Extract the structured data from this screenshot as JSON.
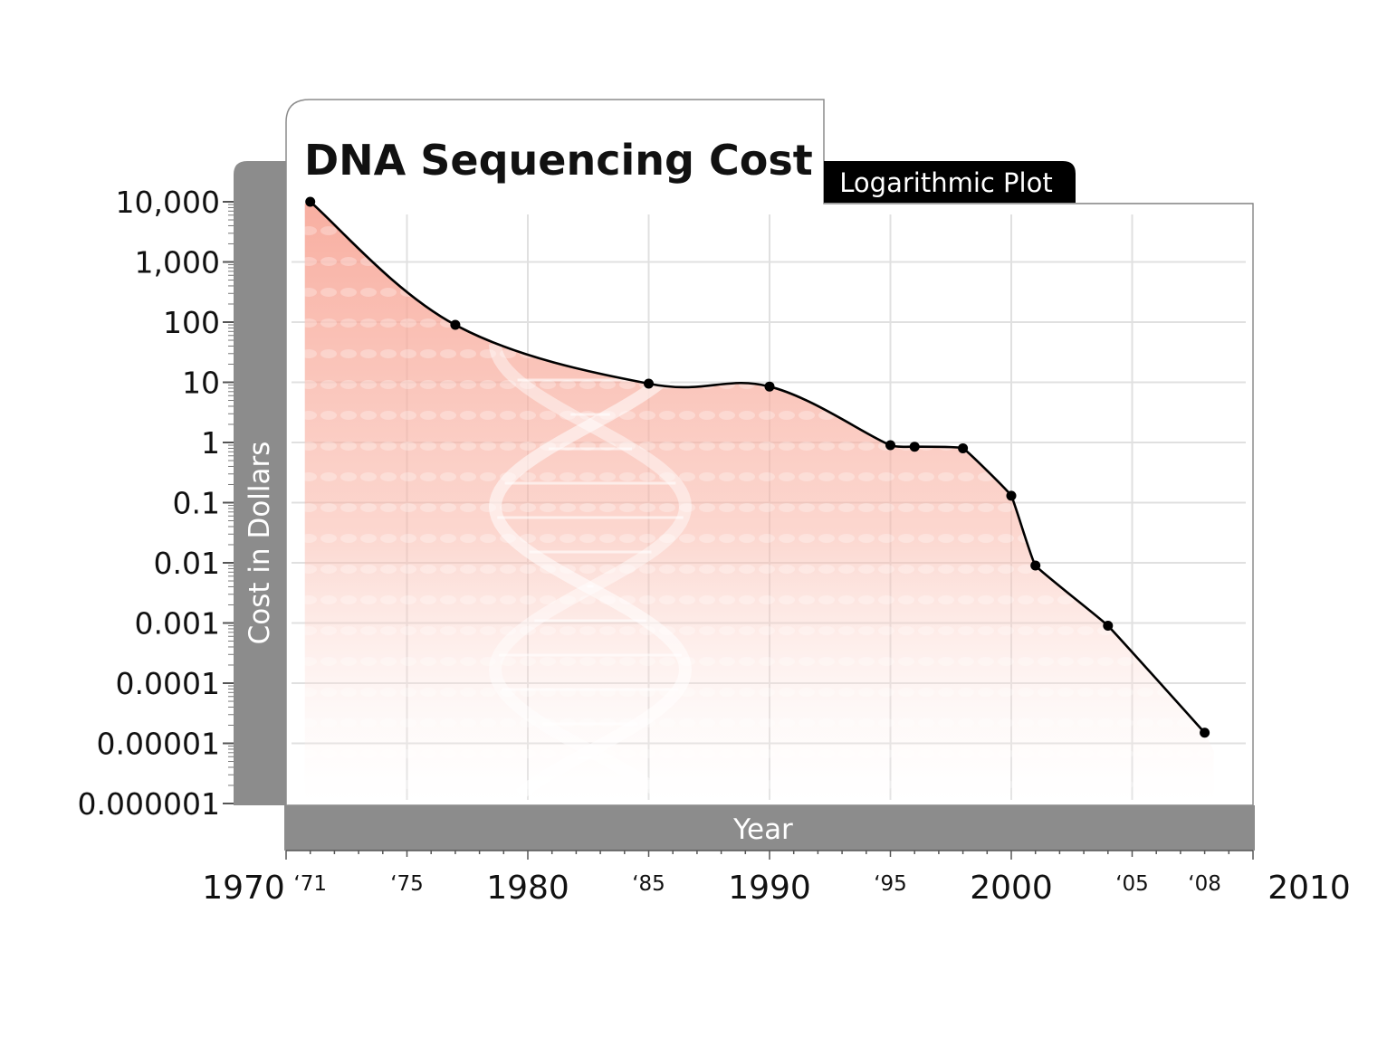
{
  "chart_data": {
    "type": "line",
    "title": "DNA Sequencing Cost",
    "subtitle": "Logarithmic Plot",
    "xlabel": "Year",
    "ylabel": "Cost in Dollars",
    "yscale": "log",
    "ylim": [
      1e-06,
      10000
    ],
    "xlim": [
      1970,
      2010
    ],
    "grid": true,
    "y_ticks": [
      {
        "value": 10000,
        "label": "10,000"
      },
      {
        "value": 1000,
        "label": "1,000"
      },
      {
        "value": 100,
        "label": "100"
      },
      {
        "value": 10,
        "label": "10"
      },
      {
        "value": 1,
        "label": "1"
      },
      {
        "value": 0.1,
        "label": "0.1"
      },
      {
        "value": 0.01,
        "label": "0.01"
      },
      {
        "value": 0.001,
        "label": "0.001"
      },
      {
        "value": 0.0001,
        "label": "0.0001"
      },
      {
        "value": 1e-05,
        "label": "0.00001"
      },
      {
        "value": 1e-06,
        "label": "0.000001"
      }
    ],
    "x_major_ticks": [
      {
        "value": 1970,
        "label": "1970"
      },
      {
        "value": 1980,
        "label": "1980"
      },
      {
        "value": 1990,
        "label": "1990"
      },
      {
        "value": 2000,
        "label": "2000"
      },
      {
        "value": 2010,
        "label": "2010"
      }
    ],
    "x_minor_ticks": [
      {
        "value": 1971,
        "label": "‘71"
      },
      {
        "value": 1975,
        "label": "‘75"
      },
      {
        "value": 1985,
        "label": "‘85"
      },
      {
        "value": 1995,
        "label": "‘95"
      },
      {
        "value": 2005,
        "label": "‘05"
      },
      {
        "value": 2008,
        "label": "‘08"
      }
    ],
    "series": [
      {
        "points": [
          {
            "x": 1971,
            "y": 10000
          },
          {
            "x": 1977,
            "y": 90
          },
          {
            "x": 1985,
            "y": 9.5
          },
          {
            "x": 1990,
            "y": 8.5
          },
          {
            "x": 1995,
            "y": 0.9
          },
          {
            "x": 1996,
            "y": 0.85
          },
          {
            "x": 1998,
            "y": 0.8
          },
          {
            "x": 2000,
            "y": 0.13
          },
          {
            "x": 2001,
            "y": 0.009
          },
          {
            "x": 2004,
            "y": 0.0009
          },
          {
            "x": 2008,
            "y": 1.5e-05
          }
        ]
      }
    ],
    "colors": {
      "panel_gray": "#8c8c8c",
      "line": "#000000",
      "fill": "#f7a090",
      "grid": "#e0e0e0"
    }
  }
}
